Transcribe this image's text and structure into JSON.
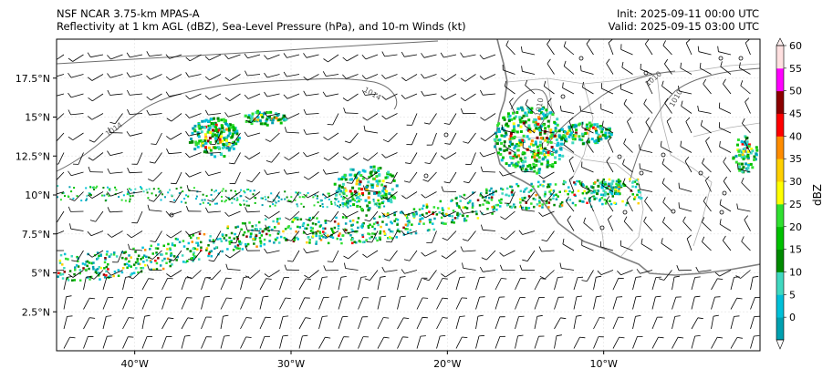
{
  "header": {
    "title_line1": "NSF NCAR 3.75-km MPAS-A",
    "title_line2": "Reflectivity at 1 km AGL (dBZ), Sea-Level Pressure (hPa), and 10-m Winds (kt)",
    "init": "Init: 2025-09-11 00:00 UTC",
    "valid": "Valid: 2025-09-15 03:00 UTC"
  },
  "map": {
    "lat_labels": [
      "17.5°N",
      "15°N",
      "12.5°N",
      "10°N",
      "7.5°N",
      "5°N",
      "2.5°N"
    ],
    "lat_values": [
      17.5,
      15,
      12.5,
      10,
      7.5,
      5,
      2.5
    ],
    "lon_labels": [
      "40°W",
      "30°W",
      "20°W",
      "10°W"
    ],
    "lon_values": [
      -40,
      -30,
      -20,
      -10
    ],
    "lon_range": [
      -45,
      0
    ],
    "lat_range": [
      0,
      20
    ],
    "isobar_labels": [
      "1014",
      "1014",
      "1010",
      "1010",
      "1010"
    ]
  },
  "colorbar": {
    "label": "dBZ",
    "ticks": [
      "0",
      "5",
      "10",
      "15",
      "20",
      "25",
      "30",
      "35",
      "40",
      "45",
      "50",
      "55",
      "60"
    ],
    "colors": [
      "#00a0b0",
      "#00c0d8",
      "#40d8c0",
      "#008a00",
      "#00c000",
      "#30e030",
      "#ffff00",
      "#ffd000",
      "#ff8c00",
      "#ff0000",
      "#8b0000",
      "#ff00ff",
      "#ffe0e0"
    ]
  }
}
